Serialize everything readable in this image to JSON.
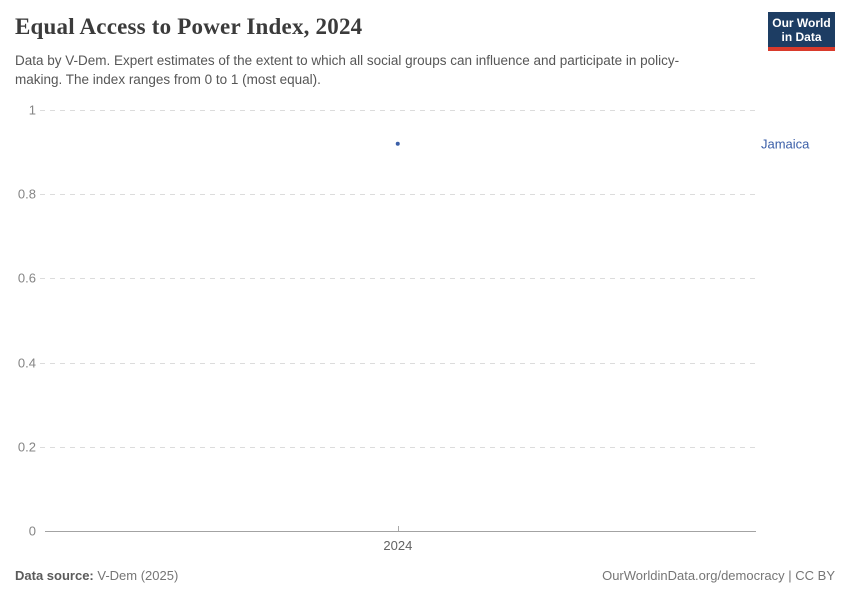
{
  "header": {
    "title": "Equal Access to Power Index, 2024",
    "subtitle": "Data by V-Dem. Expert estimates of the extent to which all social groups can influence and participate in policy-making. The index ranges from 0 to 1 (most equal).",
    "logo_line1": "Our World",
    "logo_line2": "in Data"
  },
  "chart_data": {
    "type": "scatter",
    "title": "Equal Access to Power Index, 2024",
    "x": [
      2024
    ],
    "xtick_labels": [
      "2024"
    ],
    "series": [
      {
        "name": "Jamaica",
        "x": [
          2024
        ],
        "values": [
          0.92
        ],
        "color": "#3b5fa8"
      }
    ],
    "ylim": [
      0,
      1
    ],
    "yticks": [
      0,
      0.2,
      0.4,
      0.6,
      0.8,
      1
    ],
    "ytick_labels": [
      "0",
      "0.2",
      "0.4",
      "0.6",
      "0.8",
      "1"
    ],
    "grid": "horizontal-dashed",
    "xlabel": "",
    "ylabel": "",
    "legend_position": "right-edge-label"
  },
  "colors": {
    "accent_blue": "#3b5fa8",
    "logo_bg": "#1d3d63",
    "logo_stripe": "#d93a2b",
    "gridline": "#dcdcdc",
    "axis": "#a3a3a3",
    "muted_text": "#858585"
  },
  "footer": {
    "source_label": "Data source:",
    "source_value": "V-Dem (2025)",
    "rights_url": "OurWorldinData.org/democracy",
    "rights_license": "| CC BY"
  }
}
